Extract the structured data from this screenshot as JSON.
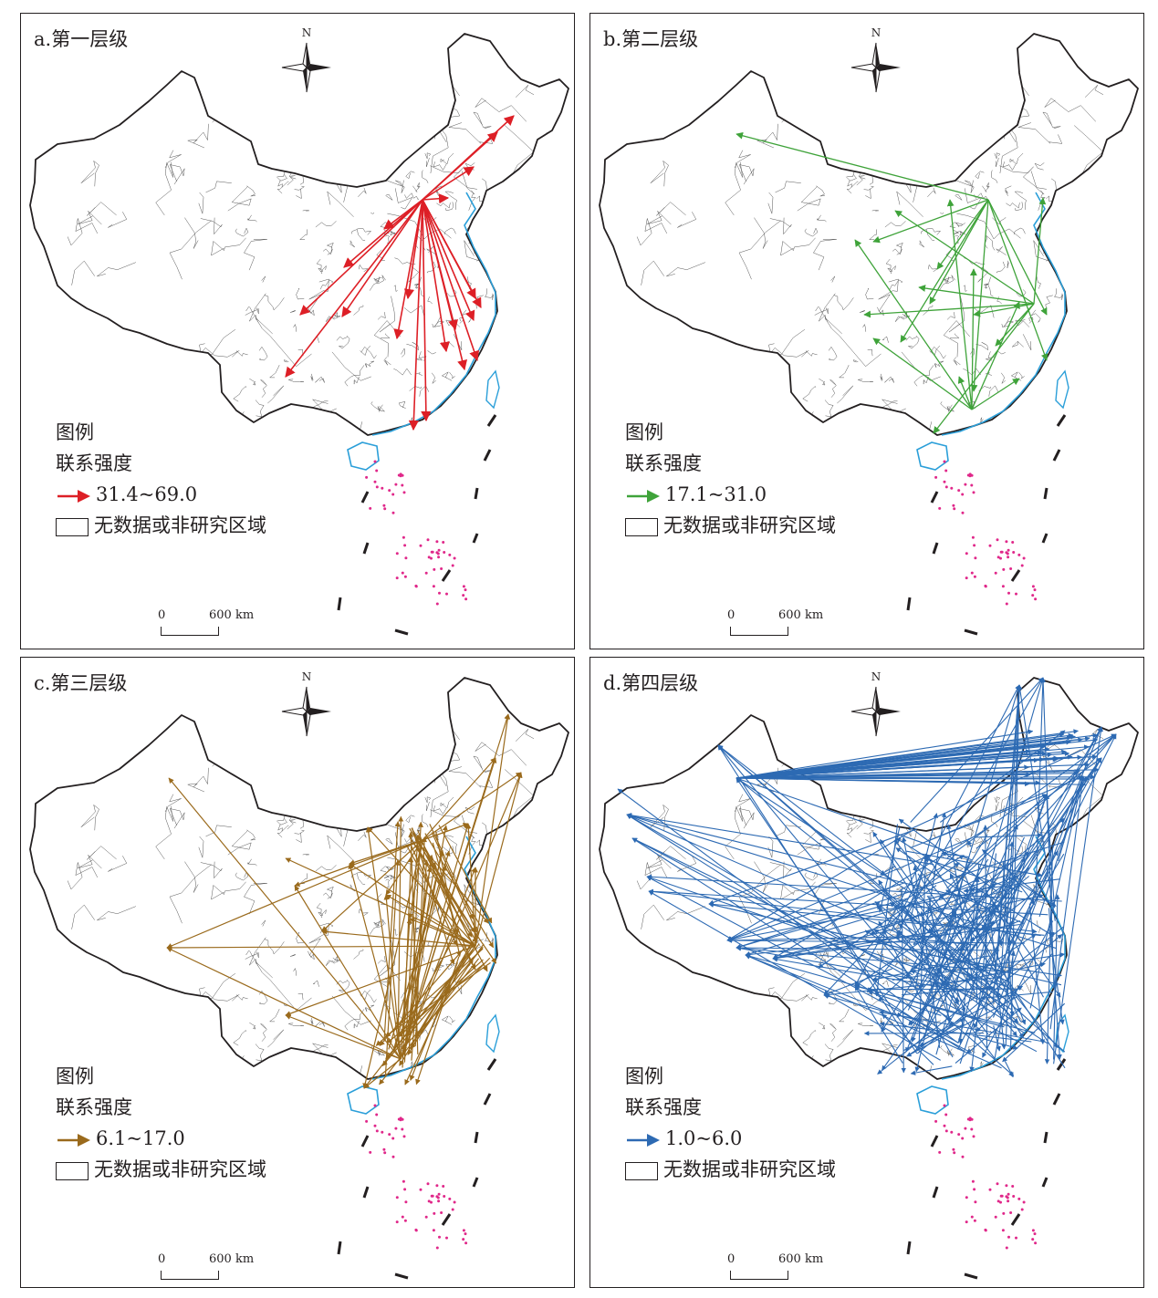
{
  "legend": {
    "title": "图例",
    "strength_label": "联系强度",
    "nodata_label": "无数据或非研究区域"
  },
  "scale": {
    "zero": "0",
    "distance": "600 km"
  },
  "compass": {
    "north": "N"
  },
  "colors": {
    "coast": "#2b9fd9",
    "islands": "#e0288a",
    "border": "#231f20"
  },
  "panels": [
    {
      "id": "a",
      "title": "a.第一层级",
      "range": "31.4~69.0",
      "color": "#dd1f26"
    },
    {
      "id": "b",
      "title": "b.第二层级",
      "range": "17.1~31.0",
      "color": "#3fa33a"
    },
    {
      "id": "c",
      "title": "c.第三层级",
      "range": "6.1~17.0",
      "color": "#9a6a1c"
    },
    {
      "id": "d",
      "title": "d.第四层级",
      "range": "1.0~6.0",
      "color": "#2d6ab3"
    }
  ]
}
